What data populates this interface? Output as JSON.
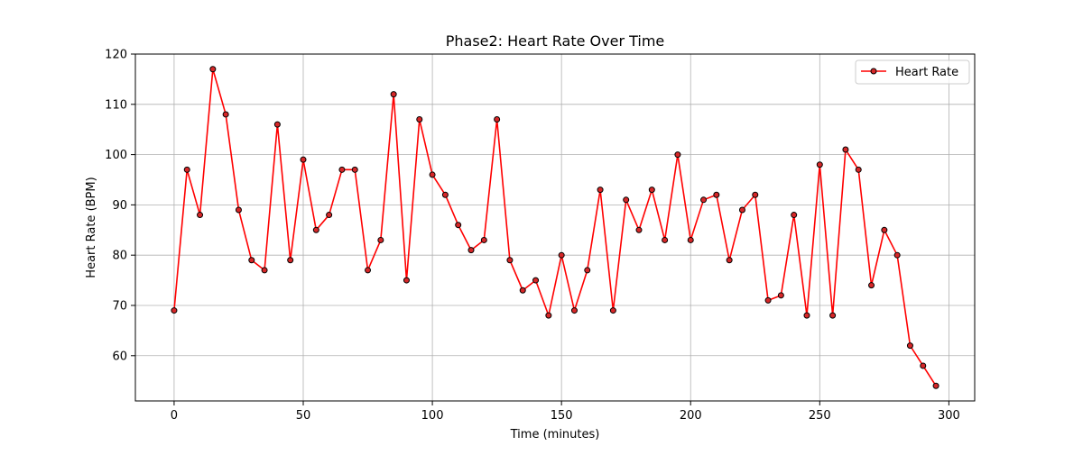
{
  "chart_data": {
    "type": "line",
    "title": "Phase2: Heart Rate Over Time",
    "xlabel": "Time (minutes)",
    "ylabel": "Heart Rate (BPM)",
    "xlim": [
      -15,
      310
    ],
    "ylim": [
      51,
      120
    ],
    "xticks": [
      0,
      50,
      100,
      150,
      200,
      250,
      300
    ],
    "yticks": [
      60,
      70,
      80,
      90,
      100,
      110,
      120
    ],
    "grid": true,
    "legend_position": "top-right",
    "colors": {
      "line": "#ff0000",
      "marker_fill": "#d62728",
      "marker_edge": "#000000",
      "grid": "#b0b0b0"
    },
    "series": [
      {
        "name": "Heart Rate",
        "x": [
          0,
          5,
          10,
          15,
          20,
          25,
          30,
          35,
          40,
          45,
          50,
          55,
          60,
          65,
          70,
          75,
          80,
          85,
          90,
          95,
          100,
          105,
          110,
          115,
          120,
          125,
          130,
          135,
          140,
          145,
          150,
          155,
          160,
          165,
          170,
          175,
          180,
          185,
          190,
          195,
          200,
          205,
          210,
          215,
          220,
          225,
          230,
          235,
          240,
          245,
          250,
          255,
          260,
          265,
          270,
          275,
          280,
          285,
          290,
          295
        ],
        "y": [
          69,
          97,
          88,
          117,
          108,
          89,
          79,
          77,
          106,
          79,
          99,
          85,
          88,
          97,
          97,
          77,
          83,
          112,
          75,
          107,
          96,
          92,
          86,
          81,
          83,
          107,
          79,
          73,
          75,
          68,
          80,
          69,
          77,
          93,
          69,
          91,
          85,
          93,
          83,
          100,
          83,
          91,
          92,
          79,
          89,
          92,
          71,
          72,
          88,
          68,
          98,
          68,
          101,
          97,
          74,
          85,
          80,
          62,
          58,
          54
        ]
      }
    ]
  }
}
